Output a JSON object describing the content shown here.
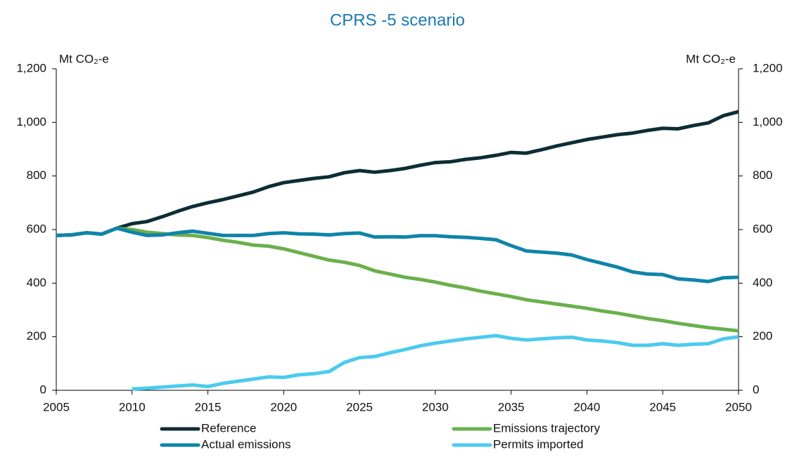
{
  "chart_data": {
    "type": "line",
    "title": "CPRS -5 scenario",
    "y_label": "Mt CO₂-e",
    "y2_label": "Mt CO₂-e",
    "x": [
      2005,
      2006,
      2007,
      2008,
      2009,
      2010,
      2011,
      2012,
      2013,
      2014,
      2015,
      2016,
      2017,
      2018,
      2019,
      2020,
      2021,
      2022,
      2023,
      2024,
      2025,
      2026,
      2027,
      2028,
      2029,
      2030,
      2031,
      2032,
      2033,
      2034,
      2035,
      2036,
      2037,
      2038,
      2039,
      2040,
      2041,
      2042,
      2043,
      2044,
      2045,
      2046,
      2047,
      2048,
      2049,
      2050
    ],
    "series": [
      {
        "name": "Reference",
        "color": "#0d2d35",
        "values": [
          578,
          580,
          588,
          583,
          605,
          622,
          630,
          648,
          668,
          686,
          700,
          712,
          726,
          740,
          760,
          775,
          783,
          791,
          797,
          812,
          820,
          814,
          820,
          828,
          840,
          850,
          853,
          862,
          868,
          877,
          888,
          885,
          898,
          912,
          924,
          936,
          945,
          954,
          960,
          970,
          978,
          976,
          988,
          998,
          1025,
          1040
        ]
      },
      {
        "name": "Emissions trajectory",
        "color": "#6ab04c",
        "values": [
          578,
          580,
          588,
          583,
          605,
          600,
          590,
          585,
          580,
          578,
          570,
          560,
          552,
          542,
          538,
          528,
          514,
          500,
          486,
          478,
          466,
          446,
          434,
          422,
          414,
          404,
          392,
          382,
          370,
          360,
          350,
          338,
          330,
          322,
          314,
          306,
          296,
          288,
          278,
          268,
          260,
          250,
          242,
          234,
          228,
          222
        ]
      },
      {
        "name": "Actual emissions",
        "color": "#0f84aa",
        "values": [
          578,
          580,
          588,
          583,
          605,
          590,
          578,
          580,
          588,
          594,
          586,
          578,
          578,
          578,
          585,
          588,
          584,
          583,
          580,
          585,
          587,
          572,
          573,
          572,
          577,
          577,
          573,
          571,
          567,
          562,
          540,
          520,
          516,
          512,
          505,
          488,
          474,
          460,
          442,
          434,
          432,
          416,
          412,
          406,
          420,
          422
        ]
      },
      {
        "name": "Permits imported",
        "color": "#4ccaf0",
        "values": [
          null,
          null,
          null,
          null,
          null,
          5,
          8,
          12,
          16,
          20,
          14,
          26,
          34,
          42,
          50,
          48,
          58,
          62,
          70,
          104,
          122,
          126,
          140,
          152,
          166,
          176,
          184,
          192,
          198,
          204,
          194,
          188,
          192,
          196,
          198,
          188,
          184,
          178,
          168,
          168,
          174,
          168,
          172,
          174,
          192,
          200
        ]
      }
    ],
    "xlim": [
      2005,
      2050
    ],
    "xticks": [
      2005,
      2010,
      2015,
      2020,
      2025,
      2030,
      2035,
      2040,
      2045,
      2050
    ],
    "ylim": [
      0,
      1200
    ],
    "yticks": [
      0,
      200,
      400,
      600,
      800,
      {
        "value": 1000,
        "label": "1,000"
      },
      {
        "value": 1200,
        "label": "1,200"
      }
    ],
    "y2lim": [
      0,
      1200
    ],
    "y2ticks": [
      0,
      200,
      400,
      600,
      800,
      {
        "value": 1000,
        "label": "1,000"
      },
      {
        "value": 1200,
        "label": "1,200"
      }
    ]
  }
}
